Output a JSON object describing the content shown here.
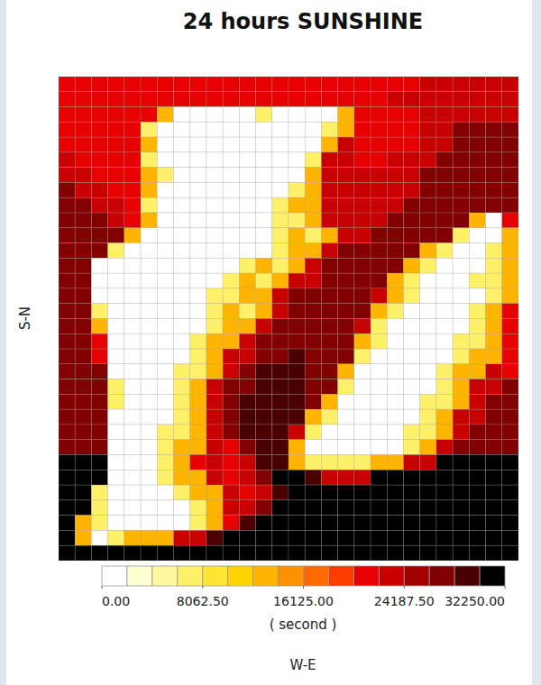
{
  "chart_data": {
    "type": "heatmap",
    "title": "24 hours SUNSHINE",
    "x_label": "W-E",
    "y_label": "S-N",
    "tick_labels": false,
    "grid": true,
    "cells": [
      [
        22000,
        22000,
        22000,
        22000,
        22000,
        22000,
        22000,
        22000,
        22000,
        22000,
        22000,
        22000,
        22000,
        22000,
        22000,
        22000,
        22000,
        22000,
        22000,
        22000,
        22000,
        22000,
        24000,
        24000,
        24000,
        24000,
        24000,
        24000
      ],
      [
        22000,
        22000,
        22000,
        22000,
        22000,
        22000,
        22000,
        22000,
        22000,
        22000,
        22000,
        22000,
        22000,
        22000,
        22000,
        22000,
        22000,
        22000,
        22000,
        22000,
        24000,
        24000,
        24000,
        24000,
        24000,
        24000,
        24000,
        24000
      ],
      [
        22000,
        22000,
        22000,
        22000,
        22000,
        22000,
        13000,
        1000,
        1000,
        1000,
        1000,
        1000,
        7000,
        1000,
        1000,
        1000,
        1000,
        13000,
        22000,
        22000,
        22000,
        22000,
        24000,
        24000,
        24000,
        24000,
        24000,
        24000
      ],
      [
        22000,
        22000,
        22000,
        22000,
        22000,
        7000,
        1000,
        1000,
        1000,
        1000,
        1000,
        1000,
        1000,
        1000,
        1000,
        1000,
        7000,
        13000,
        22000,
        22000,
        22000,
        22000,
        24000,
        24000,
        27000,
        27000,
        27000,
        27000
      ],
      [
        22000,
        22000,
        22000,
        22000,
        22000,
        13000,
        1000,
        1000,
        1000,
        1000,
        1000,
        1000,
        1000,
        1000,
        1000,
        1000,
        13000,
        24000,
        22000,
        22000,
        22000,
        22000,
        24000,
        24000,
        27000,
        27000,
        27000,
        27000
      ],
      [
        24000,
        22000,
        22000,
        22000,
        22000,
        7000,
        1000,
        1000,
        1000,
        1000,
        1000,
        1000,
        1000,
        1000,
        1000,
        7000,
        24000,
        24000,
        22000,
        22000,
        24000,
        24000,
        24000,
        27000,
        27000,
        27000,
        27000,
        27000
      ],
      [
        24000,
        24000,
        22000,
        22000,
        22000,
        13000,
        7000,
        1000,
        1000,
        1000,
        1000,
        1000,
        1000,
        1000,
        1000,
        13000,
        24000,
        24000,
        24000,
        24000,
        24000,
        24000,
        27000,
        27000,
        27000,
        27000,
        27000,
        27000
      ],
      [
        27000,
        24000,
        24000,
        22000,
        22000,
        13000,
        1000,
        1000,
        1000,
        1000,
        1000,
        1000,
        1000,
        1000,
        7000,
        13000,
        24000,
        24000,
        24000,
        24000,
        24000,
        24000,
        27000,
        27000,
        27000,
        27000,
        27000,
        27000
      ],
      [
        27000,
        27000,
        24000,
        24000,
        22000,
        7000,
        1000,
        1000,
        1000,
        1000,
        1000,
        1000,
        1000,
        7000,
        13000,
        13000,
        24000,
        24000,
        24000,
        24000,
        24000,
        27000,
        27000,
        27000,
        27000,
        27000,
        27000,
        27000
      ],
      [
        27000,
        27000,
        27000,
        24000,
        22000,
        13000,
        1000,
        1000,
        1000,
        1000,
        1000,
        1000,
        1000,
        7000,
        7000,
        13000,
        24000,
        24000,
        24000,
        24000,
        27000,
        27000,
        27000,
        27000,
        27000,
        13000,
        1000,
        22000
      ],
      [
        27000,
        27000,
        27000,
        27000,
        13000,
        1000,
        1000,
        1000,
        1000,
        1000,
        1000,
        1000,
        1000,
        7000,
        13000,
        7000,
        13000,
        24000,
        24000,
        27000,
        27000,
        27000,
        27000,
        27000,
        7000,
        1000,
        1000,
        13000
      ],
      [
        27000,
        27000,
        27000,
        7000,
        1000,
        1000,
        1000,
        1000,
        1000,
        1000,
        1000,
        1000,
        1000,
        7000,
        13000,
        13000,
        24000,
        27000,
        27000,
        27000,
        27000,
        27000,
        13000,
        7000,
        1000,
        1000,
        7000,
        13000
      ],
      [
        27000,
        27000,
        1000,
        1000,
        1000,
        1000,
        1000,
        1000,
        1000,
        1000,
        1000,
        7000,
        13000,
        7000,
        13000,
        24000,
        27000,
        27000,
        27000,
        27000,
        27000,
        13000,
        7000,
        1000,
        1000,
        1000,
        7000,
        13000
      ],
      [
        27000,
        27000,
        1000,
        1000,
        1000,
        1000,
        1000,
        1000,
        1000,
        1000,
        7000,
        13000,
        7000,
        13000,
        24000,
        24000,
        27000,
        27000,
        27000,
        27000,
        13000,
        7000,
        1000,
        1000,
        1000,
        7000,
        7000,
        13000
      ],
      [
        27000,
        27000,
        1000,
        1000,
        1000,
        1000,
        1000,
        1000,
        1000,
        7000,
        7000,
        13000,
        13000,
        24000,
        27000,
        27000,
        27000,
        27000,
        27000,
        24000,
        13000,
        7000,
        1000,
        1000,
        1000,
        1000,
        7000,
        13000
      ],
      [
        27000,
        27000,
        7000,
        1000,
        1000,
        1000,
        1000,
        1000,
        1000,
        7000,
        13000,
        7000,
        13000,
        24000,
        27000,
        27000,
        27000,
        27000,
        27000,
        13000,
        7000,
        1000,
        1000,
        1000,
        1000,
        7000,
        13000,
        22000
      ],
      [
        27000,
        27000,
        13000,
        1000,
        1000,
        1000,
        1000,
        1000,
        1000,
        7000,
        13000,
        13000,
        24000,
        27000,
        27000,
        27000,
        27000,
        27000,
        24000,
        7000,
        1000,
        1000,
        1000,
        1000,
        1000,
        7000,
        13000,
        22000
      ],
      [
        27000,
        27000,
        22000,
        1000,
        1000,
        1000,
        1000,
        1000,
        7000,
        13000,
        13000,
        24000,
        27000,
        27000,
        27000,
        27000,
        27000,
        27000,
        13000,
        7000,
        1000,
        1000,
        1000,
        1000,
        7000,
        7000,
        13000,
        22000
      ],
      [
        27000,
        27000,
        22000,
        1000,
        1000,
        1000,
        1000,
        1000,
        7000,
        13000,
        24000,
        24000,
        27000,
        27000,
        30000,
        27000,
        27000,
        27000,
        7000,
        1000,
        1000,
        1000,
        1000,
        1000,
        7000,
        13000,
        13000,
        22000
      ],
      [
        27000,
        27000,
        27000,
        1000,
        1000,
        1000,
        1000,
        7000,
        7000,
        13000,
        24000,
        27000,
        30000,
        30000,
        30000,
        27000,
        27000,
        13000,
        1000,
        1000,
        1000,
        1000,
        1000,
        7000,
        13000,
        13000,
        24000,
        22000
      ],
      [
        27000,
        27000,
        27000,
        7000,
        1000,
        1000,
        1000,
        7000,
        13000,
        24000,
        27000,
        27000,
        30000,
        30000,
        30000,
        27000,
        27000,
        7000,
        1000,
        1000,
        1000,
        1000,
        1000,
        7000,
        13000,
        24000,
        24000,
        27000
      ],
      [
        27000,
        27000,
        27000,
        7000,
        1000,
        1000,
        1000,
        7000,
        13000,
        24000,
        27000,
        30000,
        30000,
        30000,
        30000,
        27000,
        13000,
        1000,
        1000,
        1000,
        1000,
        1000,
        7000,
        7000,
        13000,
        24000,
        27000,
        27000
      ],
      [
        27000,
        27000,
        27000,
        1000,
        1000,
        1000,
        1000,
        7000,
        13000,
        24000,
        27000,
        30000,
        30000,
        30000,
        30000,
        13000,
        7000,
        1000,
        1000,
        1000,
        1000,
        1000,
        7000,
        13000,
        24000,
        24000,
        27000,
        27000
      ],
      [
        27000,
        27000,
        27000,
        1000,
        1000,
        1000,
        7000,
        7000,
        13000,
        24000,
        27000,
        30000,
        30000,
        30000,
        24000,
        7000,
        1000,
        1000,
        1000,
        1000,
        1000,
        7000,
        7000,
        13000,
        24000,
        27000,
        27000,
        27000
      ],
      [
        27000,
        27000,
        27000,
        1000,
        1000,
        1000,
        7000,
        13000,
        13000,
        24000,
        22000,
        27000,
        30000,
        30000,
        13000,
        1000,
        1000,
        1000,
        1000,
        1000,
        1000,
        7000,
        13000,
        24000,
        27000,
        27000,
        27000,
        27000
      ],
      [
        32000,
        32000,
        32000,
        1000,
        1000,
        1000,
        7000,
        13000,
        22000,
        24000,
        22000,
        24000,
        30000,
        30000,
        13000,
        7000,
        7000,
        7000,
        7000,
        13000,
        13000,
        24000,
        24000,
        32000,
        32000,
        32000,
        32000,
        32000
      ],
      [
        32000,
        32000,
        32000,
        1000,
        1000,
        1000,
        7000,
        13000,
        13000,
        24000,
        22000,
        24000,
        27000,
        32000,
        32000,
        30000,
        24000,
        24000,
        24000,
        32000,
        32000,
        32000,
        32000,
        32000,
        32000,
        32000,
        32000,
        32000
      ],
      [
        32000,
        32000,
        7000,
        1000,
        1000,
        1000,
        1000,
        7000,
        13000,
        13000,
        24000,
        22000,
        24000,
        30000,
        32000,
        32000,
        32000,
        32000,
        32000,
        32000,
        32000,
        32000,
        32000,
        32000,
        32000,
        32000,
        32000,
        32000
      ],
      [
        32000,
        32000,
        7000,
        1000,
        1000,
        1000,
        1000,
        1000,
        7000,
        13000,
        24000,
        24000,
        27000,
        32000,
        32000,
        32000,
        32000,
        32000,
        32000,
        32000,
        32000,
        32000,
        32000,
        32000,
        32000,
        32000,
        32000,
        32000
      ],
      [
        32000,
        13000,
        7000,
        1000,
        1000,
        1000,
        1000,
        1000,
        7000,
        13000,
        22000,
        30000,
        32000,
        32000,
        32000,
        32000,
        32000,
        32000,
        32000,
        32000,
        32000,
        32000,
        32000,
        32000,
        32000,
        32000,
        32000,
        32000
      ],
      [
        32000,
        13000,
        1000,
        7000,
        13000,
        13000,
        13000,
        24000,
        24000,
        30000,
        32000,
        32000,
        32000,
        32000,
        32000,
        32000,
        32000,
        32000,
        32000,
        32000,
        32000,
        32000,
        32000,
        32000,
        32000,
        32000,
        32000,
        32000
      ],
      [
        32000,
        32000,
        32000,
        32000,
        32000,
        32000,
        32000,
        32000,
        32000,
        32000,
        32000,
        32000,
        32000,
        32000,
        32000,
        32000,
        32000,
        32000,
        32000,
        32000,
        32000,
        32000,
        32000,
        32000,
        32000,
        32000,
        32000,
        32000
      ]
    ],
    "colorbar": {
      "range": [
        0,
        32250
      ],
      "ticks": [
        {
          "value": 0,
          "label": "0.00"
        },
        {
          "value": 8062.5,
          "label": "8062.50"
        },
        {
          "value": 16125,
          "label": "16125.00"
        },
        {
          "value": 24187.5,
          "label": "24187.50"
        },
        {
          "value": 32250,
          "label": "32250.00"
        }
      ],
      "label": "( second )"
    }
  }
}
